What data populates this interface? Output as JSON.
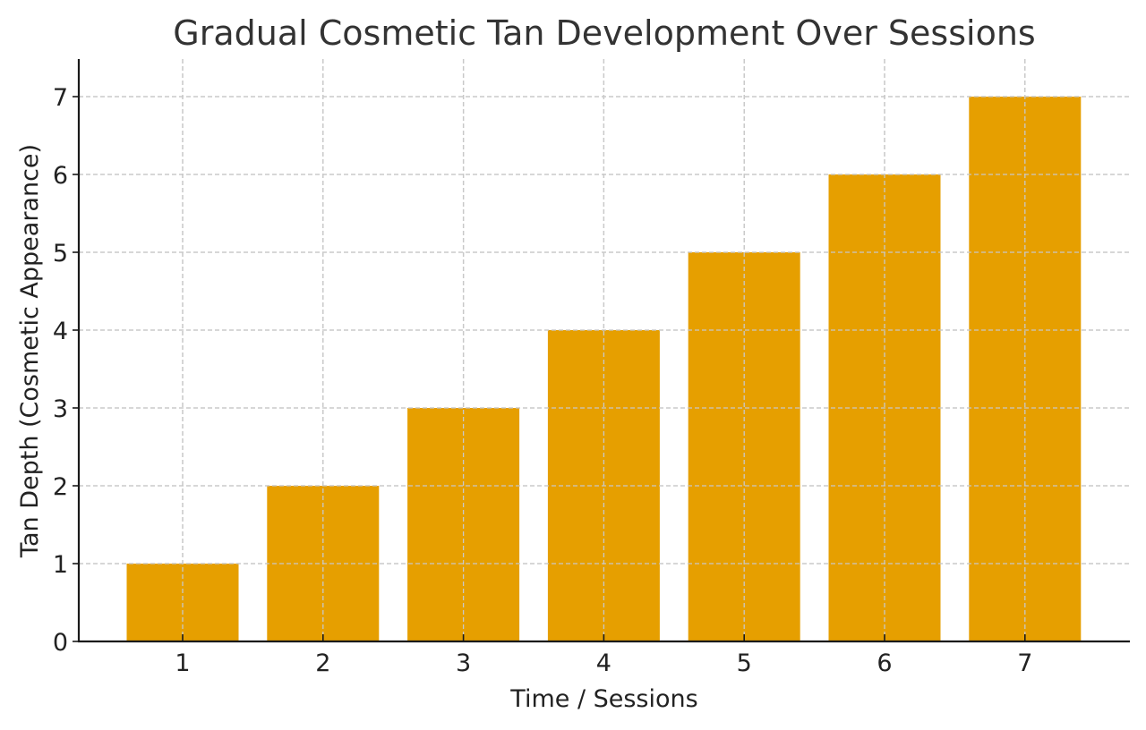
{
  "chart_data": {
    "type": "bar",
    "title": "Gradual Cosmetic Tan Development Over Sessions",
    "xlabel": "Time / Sessions",
    "ylabel": "Tan Depth (Cosmetic Appearance)",
    "categories": [
      "1",
      "2",
      "3",
      "4",
      "5",
      "6",
      "7"
    ],
    "values": [
      1,
      2,
      3,
      4,
      5,
      6,
      7
    ],
    "ylim": [
      0,
      7.5
    ],
    "yticks": [
      0,
      1,
      2,
      3,
      4,
      5,
      6,
      7
    ],
    "grid": true,
    "legend": null,
    "bar_color": "#E69F00"
  }
}
